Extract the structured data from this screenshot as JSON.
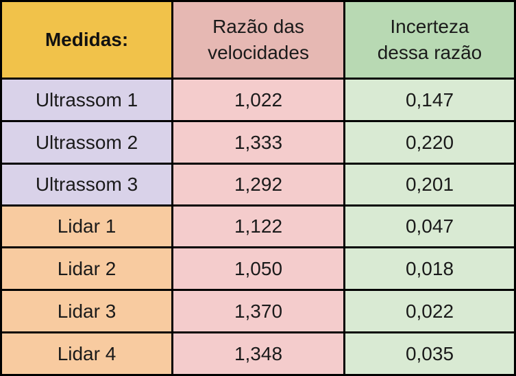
{
  "table": {
    "headers": [
      {
        "label": "Medidas:",
        "color": "#f1c24a"
      },
      {
        "label": "Razão das\nvelocidades",
        "color": "#e6b8b3"
      },
      {
        "label": "Incerteza\ndessa razão",
        "color": "#b8d9b3"
      }
    ],
    "rows": [
      {
        "name": "Ultrassom 1",
        "ratio": "1,022",
        "uncertainty": "0,147",
        "group": "ultrassom"
      },
      {
        "name": "Ultrassom 2",
        "ratio": "1,333",
        "uncertainty": "0,220",
        "group": "ultrassom"
      },
      {
        "name": "Ultrassom 3",
        "ratio": "1,292",
        "uncertainty": "0,201",
        "group": "ultrassom"
      },
      {
        "name": "Lidar 1",
        "ratio": "1,122",
        "uncertainty": "0,047",
        "group": "lidar"
      },
      {
        "name": "Lidar 2",
        "ratio": "1,050",
        "uncertainty": "0,018",
        "group": "lidar"
      },
      {
        "name": "Lidar 3",
        "ratio": "1,370",
        "uncertainty": "0,022",
        "group": "lidar"
      },
      {
        "name": "Lidar 4",
        "ratio": "1,348",
        "uncertainty": "0,035",
        "group": "lidar"
      }
    ]
  },
  "colors": {
    "ultrassom_name": "#d9d2e9",
    "lidar_name": "#f8cba0",
    "ratio_cell": "#f4cccc",
    "uncertainty_cell": "#d9ead3",
    "border": "#000000"
  }
}
